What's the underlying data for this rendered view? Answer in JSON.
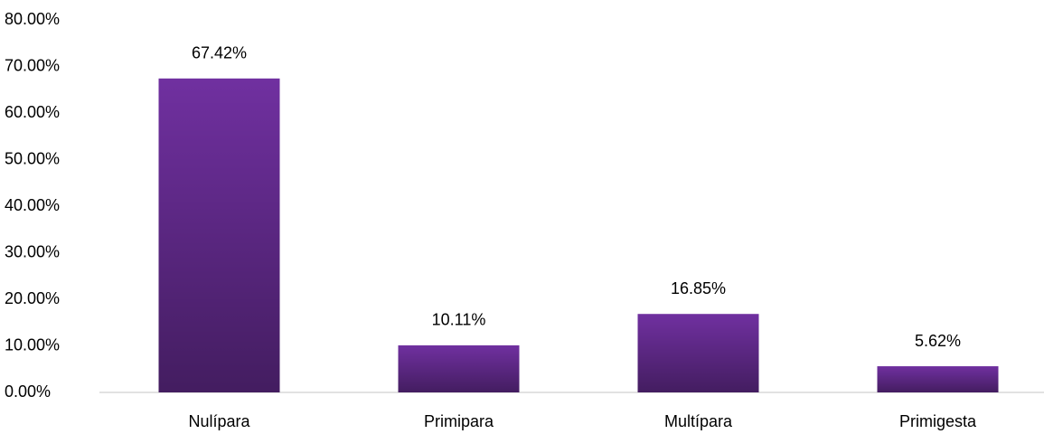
{
  "chart_data": {
    "type": "bar",
    "categories": [
      "Nulípara",
      "Primipara",
      "Multípara",
      "Primigesta"
    ],
    "values": [
      67.42,
      10.11,
      16.85,
      5.62
    ],
    "value_labels": [
      "67.42%",
      "10.11%",
      "16.85%",
      "5.62%"
    ],
    "color": "#7030a0",
    "ylim": [
      0,
      80
    ],
    "yticks": [
      {
        "value": 0,
        "label": "0.00%"
      },
      {
        "value": 10,
        "label": "10.00%"
      },
      {
        "value": 20,
        "label": "20.00%"
      },
      {
        "value": 30,
        "label": "30.00%"
      },
      {
        "value": 40,
        "label": "40.00%"
      },
      {
        "value": 50,
        "label": "50.00%"
      },
      {
        "value": 60,
        "label": "60.00%"
      },
      {
        "value": 70,
        "label": "70.00%"
      },
      {
        "value": 80,
        "label": "80.00%"
      }
    ],
    "grid": false
  }
}
